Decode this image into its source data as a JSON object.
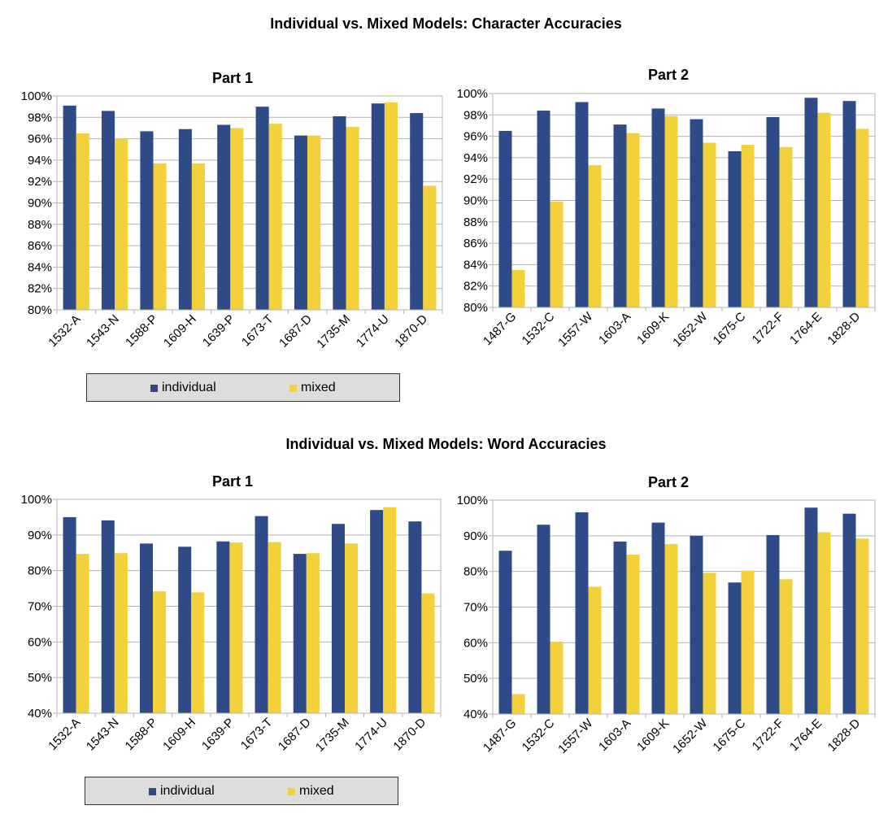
{
  "colors": {
    "individual": "#2e4a87",
    "mixed": "#f2d13a",
    "grid": "#b3b3b3",
    "axis": "#b3b3b3"
  },
  "sections": [
    {
      "title": "Individual vs. Mixed Models: Character Accuracies",
      "legend": {
        "individual": "individual",
        "mixed": "mixed"
      }
    },
    {
      "title": "Individual vs. Mixed Models: Word Accuracies",
      "legend": {
        "individual": "individual",
        "mixed": "mixed"
      }
    }
  ],
  "chart_data": [
    {
      "type": "bar",
      "title": "Part 1",
      "categories": [
        "1532-A",
        "1543-N",
        "1588-P",
        "1609-H",
        "1639-P",
        "1673-T",
        "1687-D",
        "1735-M",
        "1774-U",
        "1870-D"
      ],
      "series": [
        {
          "name": "individual",
          "values": [
            99.1,
            98.6,
            96.7,
            96.9,
            97.3,
            99.0,
            96.3,
            98.1,
            99.3,
            98.4
          ]
        },
        {
          "name": "mixed",
          "values": [
            96.5,
            96.0,
            93.7,
            93.7,
            97.0,
            97.4,
            96.3,
            97.1,
            99.4,
            91.6
          ]
        }
      ],
      "ylim": [
        80,
        100
      ],
      "yticks": [
        "80%",
        "82%",
        "84%",
        "86%",
        "88%",
        "90%",
        "92%",
        "94%",
        "96%",
        "98%",
        "100%"
      ],
      "grid": true
    },
    {
      "type": "bar",
      "title": "Part 2",
      "categories": [
        "1487-G",
        "1532-C",
        "1557-W",
        "1603-A",
        "1609-K",
        "1652-W",
        "1675-C",
        "1722-F",
        "1764-E",
        "1828-D"
      ],
      "series": [
        {
          "name": "individual",
          "values": [
            96.5,
            98.4,
            99.2,
            97.1,
            98.6,
            97.6,
            94.6,
            97.8,
            99.6,
            99.3
          ]
        },
        {
          "name": "mixed",
          "values": [
            83.5,
            89.9,
            93.3,
            96.3,
            97.9,
            95.4,
            95.2,
            95.0,
            98.2,
            96.7
          ]
        }
      ],
      "ylim": [
        80,
        100
      ],
      "yticks": [
        "80%",
        "82%",
        "84%",
        "86%",
        "88%",
        "90%",
        "92%",
        "94%",
        "96%",
        "98%",
        "100%"
      ],
      "grid": true
    },
    {
      "type": "bar",
      "title": "Part 1",
      "categories": [
        "1532-A",
        "1543-N",
        "1588-P",
        "1609-H",
        "1639-P",
        "1673-T",
        "1687-D",
        "1735-M",
        "1774-U",
        "1870-D"
      ],
      "series": [
        {
          "name": "individual",
          "values": [
            95.0,
            94.1,
            87.6,
            86.7,
            88.2,
            95.3,
            84.7,
            93.1,
            97.0,
            93.8
          ]
        },
        {
          "name": "mixed",
          "values": [
            84.7,
            84.9,
            74.2,
            73.9,
            87.9,
            88.0,
            84.9,
            87.6,
            97.8,
            73.6
          ]
        }
      ],
      "ylim": [
        40,
        100
      ],
      "yticks": [
        "40%",
        "50%",
        "60%",
        "70%",
        "80%",
        "90%",
        "100%"
      ],
      "grid": true
    },
    {
      "type": "bar",
      "title": "Part 2",
      "categories": [
        "1487-G",
        "1532-C",
        "1557-W",
        "1603-A",
        "1609-K",
        "1652-W",
        "1675-C",
        "1722-F",
        "1764-E",
        "1828-D"
      ],
      "series": [
        {
          "name": "individual",
          "values": [
            85.8,
            93.1,
            96.6,
            88.4,
            93.7,
            90.0,
            76.9,
            90.2,
            97.9,
            96.2
          ]
        },
        {
          "name": "mixed",
          "values": [
            45.6,
            60.3,
            75.7,
            84.7,
            87.7,
            79.6,
            80.2,
            77.8,
            91.0,
            89.2
          ]
        }
      ],
      "ylim": [
        40,
        100
      ],
      "yticks": [
        "40%",
        "50%",
        "60%",
        "70%",
        "80%",
        "90%",
        "100%"
      ],
      "grid": true
    }
  ]
}
